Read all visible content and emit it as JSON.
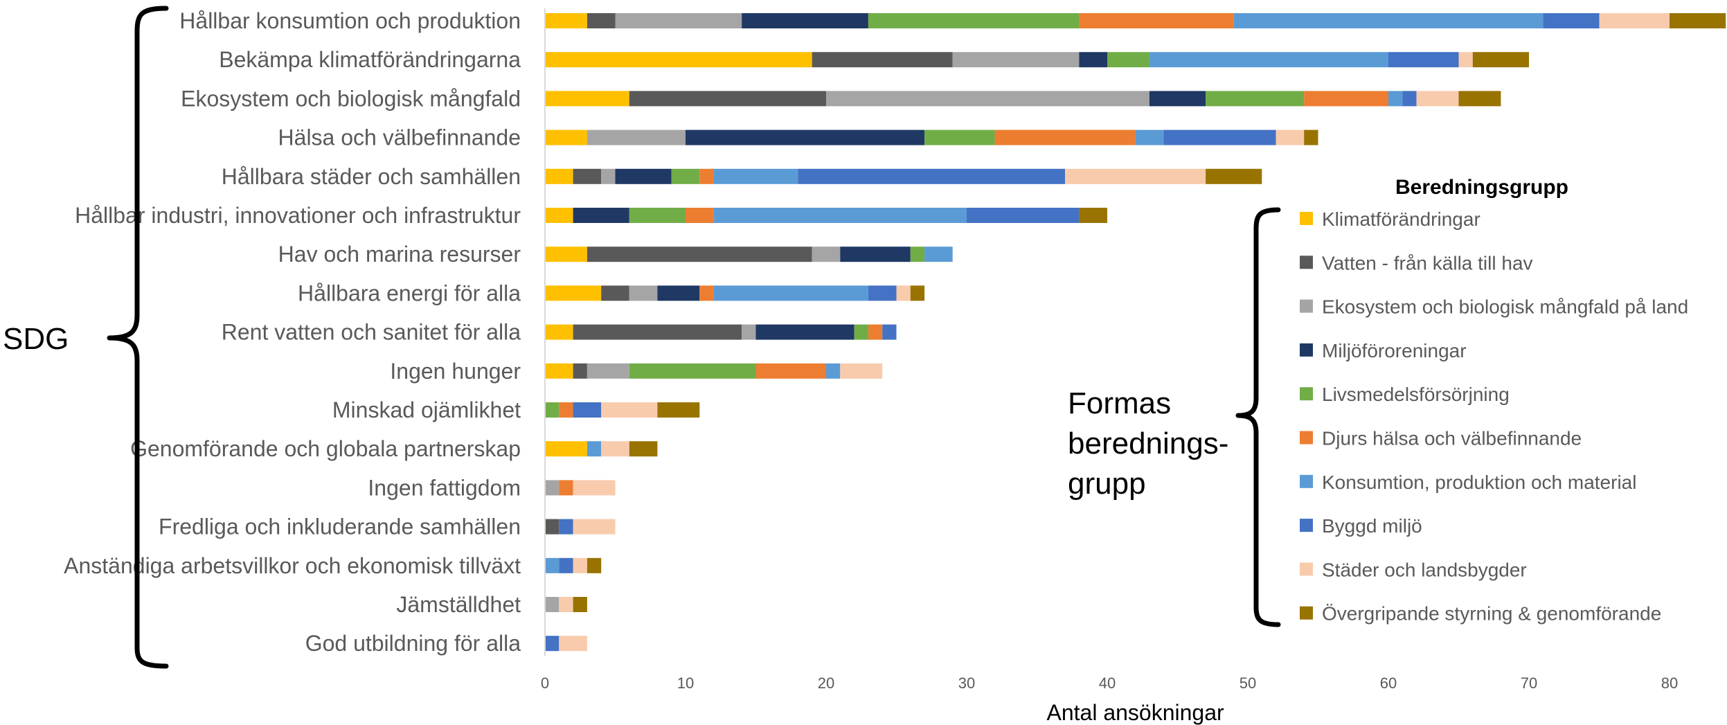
{
  "chart_data": {
    "type": "bar",
    "orientation": "horizontal",
    "stacked": true,
    "title": "",
    "xlabel": "Antal ansökningar",
    "ylabel": "",
    "xlim": [
      0,
      84
    ],
    "xticks": [
      0,
      10,
      20,
      30,
      40,
      50,
      60,
      70,
      80
    ],
    "grid": false,
    "legend_title": "Beredningsgrupp",
    "legend_position": "right",
    "categories": [
      "Hållbar konsumtion och produktion",
      "Bekämpa klimatförändringarna",
      "Ekosystem och biologisk mångfald",
      "Hälsa och välbefinnande",
      "Hållbara städer och samhällen",
      "Hållbar industri, innovationer och infrastruktur",
      "Hav och marina resurser",
      "Hållbara energi för alla",
      "Rent vatten och sanitet för alla",
      "Ingen hunger",
      "Minskad ojämlikhet",
      "Genomförande och globala partnerskap",
      "Ingen fattigdom",
      "Fredliga och inkluderande samhällen",
      "Anständiga arbetsvillkor och ekonomisk tillväxt",
      "Jämställdhet",
      "God utbildning för alla"
    ],
    "series": [
      {
        "name": "Klimatförändringar",
        "color": "#FFC000",
        "values": [
          3,
          19,
          6,
          3,
          2,
          2,
          3,
          4,
          2,
          2,
          0,
          3,
          0,
          0,
          0,
          0,
          0
        ]
      },
      {
        "name": "Vatten - från källa till hav",
        "color": "#595959",
        "values": [
          2,
          10,
          14,
          0,
          2,
          0,
          16,
          2,
          12,
          1,
          0,
          0,
          0,
          1,
          0,
          0,
          0
        ]
      },
      {
        "name": "Ekosystem och biologisk mångfald på land",
        "color": "#A5A5A5",
        "values": [
          9,
          9,
          23,
          7,
          1,
          0,
          2,
          2,
          1,
          3,
          0,
          0,
          1,
          0,
          0,
          1,
          0
        ]
      },
      {
        "name": "Miljöföroreningar",
        "color": "#1F3864",
        "values": [
          9,
          2,
          4,
          17,
          4,
          4,
          5,
          3,
          7,
          0,
          0,
          0,
          0,
          0,
          0,
          0,
          0
        ]
      },
      {
        "name": "Livsmedelsförsörjning",
        "color": "#70AD47",
        "values": [
          15,
          3,
          7,
          5,
          2,
          4,
          1,
          0,
          1,
          9,
          1,
          0,
          0,
          0,
          0,
          0,
          0
        ]
      },
      {
        "name": "Djurs hälsa och välbefinnande",
        "color": "#ED7D31",
        "values": [
          11,
          0,
          6,
          10,
          1,
          2,
          0,
          1,
          1,
          5,
          1,
          0,
          1,
          0,
          0,
          0,
          0
        ]
      },
      {
        "name": "Konsumtion, produktion och material",
        "color": "#5B9BD5",
        "values": [
          22,
          17,
          1,
          2,
          6,
          18,
          2,
          11,
          0,
          1,
          0,
          1,
          0,
          0,
          1,
          0,
          0
        ]
      },
      {
        "name": "Byggd miljö",
        "color": "#4472C4",
        "values": [
          4,
          5,
          1,
          8,
          19,
          8,
          0,
          2,
          1,
          0,
          2,
          0,
          0,
          1,
          1,
          0,
          1
        ]
      },
      {
        "name": "Städer och landsbygder",
        "color": "#F8CBAD",
        "values": [
          5,
          1,
          3,
          2,
          10,
          0,
          0,
          1,
          0,
          3,
          4,
          2,
          3,
          3,
          1,
          1,
          2
        ]
      },
      {
        "name": "Övergripande styrning & genomförande",
        "color": "#997300",
        "values": [
          4,
          4,
          3,
          1,
          4,
          2,
          0,
          1,
          0,
          0,
          3,
          2,
          0,
          0,
          1,
          1,
          0
        ]
      }
    ]
  },
  "annotations": {
    "left_brace_label": "SDG",
    "right_brace_lines": [
      "Formas",
      "berednings-",
      "grupp"
    ]
  }
}
